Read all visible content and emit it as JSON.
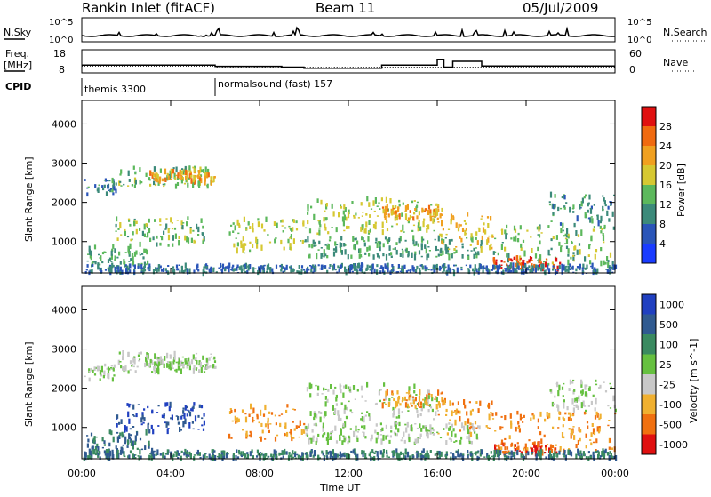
{
  "header": {
    "station": "Rankin Inlet (fitACF)",
    "beam": "Beam 11",
    "date": "05/Jul/2009"
  },
  "panels": {
    "nsky_label": "N.Sky",
    "nsky_ticks": [
      "10^5",
      "10^0"
    ],
    "nsearch_label": "N.Search",
    "nsearch_ticks": [
      "10^5",
      "10^0"
    ],
    "freq_label_1": "Freq.",
    "freq_label_2": "[MHz]",
    "freq_ticks": [
      "18",
      "8"
    ],
    "nave_label": "Nave",
    "nave_ticks": [
      "60",
      "0"
    ],
    "cpid_label": "CPID",
    "cpid_modes": [
      {
        "name": "themis 3300",
        "start_hour": 0
      },
      {
        "name": "normalsound (fast) 157",
        "start_hour": 6
      }
    ]
  },
  "axes": {
    "ylabel": "Slant Range [km]",
    "yticks": [
      1000,
      2000,
      3000,
      4000
    ],
    "xlabel": "Time UT",
    "xticks": [
      "00:00",
      "04:00",
      "08:00",
      "12:00",
      "16:00",
      "20:00",
      "00:00"
    ]
  },
  "power_scale": {
    "label": "Power [dB]",
    "ticks": [
      "4",
      "8",
      "12",
      "16",
      "20",
      "24",
      "28"
    ],
    "colors": [
      "#1a3cff",
      "#2a55b8",
      "#3c8a7a",
      "#5cb85c",
      "#d6c832",
      "#f0a020",
      "#f06a10",
      "#e01010"
    ]
  },
  "velocity_scale": {
    "label": "Velocity [m s^-1]",
    "ticks": [
      "1000",
      "500",
      "100",
      "25",
      "-25",
      "-100",
      "-500",
      "-1000"
    ],
    "colors": [
      "#2040c0",
      "#305a90",
      "#3a8a60",
      "#66c040",
      "#c8c8c8",
      "#f0b030",
      "#f07010",
      "#e01010"
    ]
  },
  "chart_data": {
    "type": "heatmap",
    "title": "Rankin Inlet (fitACF)  Beam 11  05/Jul/2009",
    "xlabel": "Time UT",
    "ylabel": "Slant Range [km]",
    "xlim_hours": [
      0,
      24
    ],
    "ylim_km": [
      200,
      4600
    ],
    "grid": false,
    "echo_regions": [
      {
        "t0": 0.1,
        "t1": 1.5,
        "r0": 2200,
        "r1": 2600,
        "power_db": 9,
        "velocity": 25
      },
      {
        "t0": 1.5,
        "t1": 5.8,
        "r0": 2400,
        "r1": 2900,
        "power_db": 14,
        "velocity": 25
      },
      {
        "t0": 3.0,
        "t1": 6.0,
        "r0": 2500,
        "r1": 2800,
        "power_db": 22,
        "velocity": 25
      },
      {
        "t0": 0.2,
        "t1": 3.0,
        "r0": 400,
        "r1": 900,
        "power_db": 12,
        "velocity": 100
      },
      {
        "t0": 1.5,
        "t1": 5.5,
        "r0": 900,
        "r1": 1600,
        "power_db": 14,
        "velocity": 500
      },
      {
        "t0": 6.5,
        "t1": 10.0,
        "r0": 700,
        "r1": 1600,
        "power_db": 16,
        "velocity": -100
      },
      {
        "t0": 10.0,
        "t1": 16.0,
        "r0": 1200,
        "r1": 2100,
        "power_db": 16,
        "velocity": 25
      },
      {
        "t0": 13.5,
        "t1": 16.2,
        "r0": 1500,
        "r1": 1900,
        "power_db": 22,
        "velocity": -100
      },
      {
        "t0": 10.0,
        "t1": 18.0,
        "r0": 600,
        "r1": 1100,
        "power_db": 12,
        "velocity": 25
      },
      {
        "t0": 16.0,
        "t1": 18.5,
        "r0": 800,
        "r1": 1700,
        "power_db": 20,
        "velocity": -100
      },
      {
        "t0": 18.5,
        "t1": 24.0,
        "r0": 400,
        "r1": 1400,
        "power_db": 14,
        "velocity": -100
      },
      {
        "t0": 18.5,
        "t1": 21.5,
        "r0": 300,
        "r1": 600,
        "power_db": 28,
        "velocity": -500
      },
      {
        "t0": 21.0,
        "t1": 24.0,
        "r0": 1400,
        "r1": 2200,
        "power_db": 10,
        "velocity": 25
      },
      {
        "t0": 0.0,
        "t1": 24.0,
        "r0": 200,
        "r1": 400,
        "power_db": 8,
        "velocity": 100
      }
    ],
    "freq_mhz": [
      {
        "t": 0.0,
        "v": 11
      },
      {
        "t": 6.0,
        "v": 11
      },
      {
        "t": 6.0,
        "v": 10.5
      },
      {
        "t": 24.0,
        "v": 10.5
      }
    ],
    "nave": [
      {
        "t": 0.0,
        "v": 20
      },
      {
        "t": 6.0,
        "v": 20
      },
      {
        "t": 6.0,
        "v": 17
      },
      {
        "t": 9.0,
        "v": 17
      },
      {
        "t": 9.0,
        "v": 15
      },
      {
        "t": 10.0,
        "v": 15
      },
      {
        "t": 10.0,
        "v": 12
      },
      {
        "t": 13.5,
        "v": 12
      },
      {
        "t": 13.5,
        "v": 20
      },
      {
        "t": 16.0,
        "v": 20
      },
      {
        "t": 16.0,
        "v": 35
      },
      {
        "t": 16.3,
        "v": 35
      },
      {
        "t": 16.3,
        "v": 15
      },
      {
        "t": 16.7,
        "v": 15
      },
      {
        "t": 16.7,
        "v": 30
      },
      {
        "t": 18.0,
        "v": 30
      },
      {
        "t": 18.0,
        "v": 18
      },
      {
        "t": 24.0,
        "v": 18
      }
    ]
  }
}
